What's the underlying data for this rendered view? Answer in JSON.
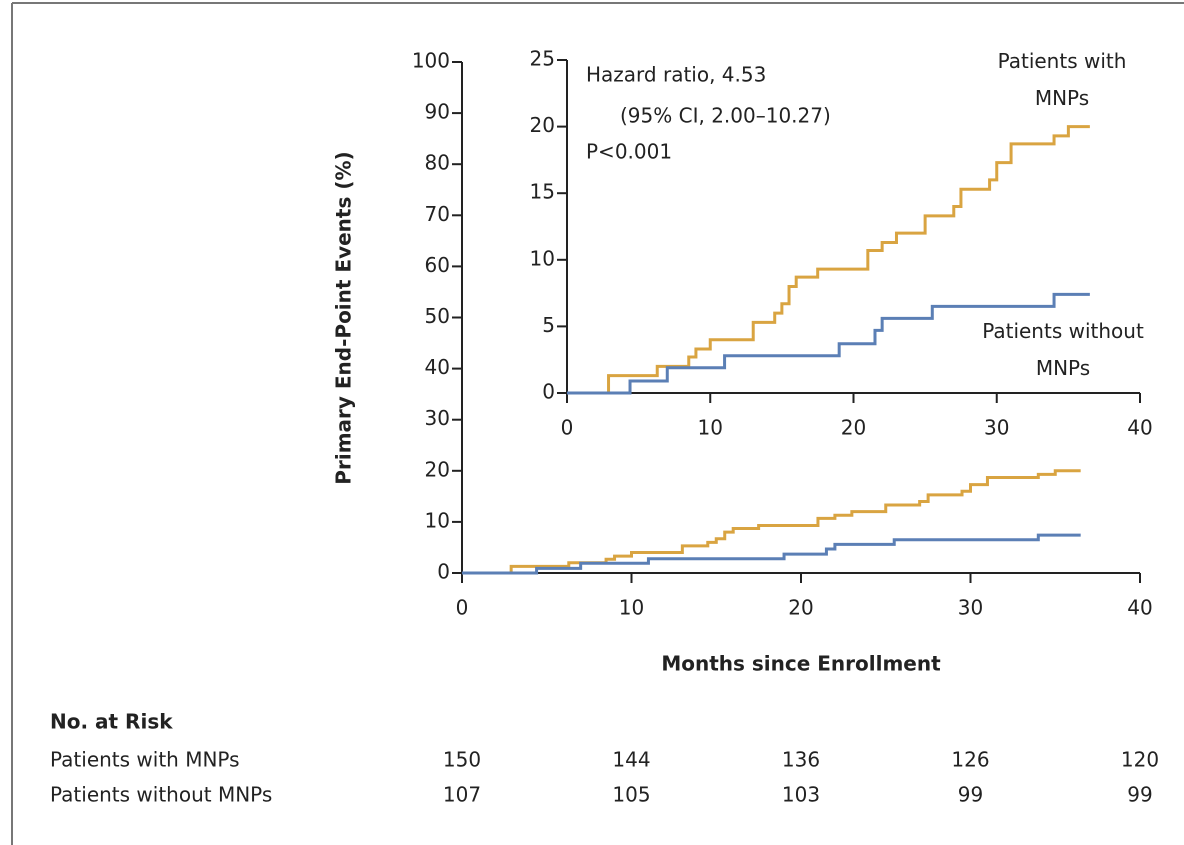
{
  "chart_data": [
    {
      "type": "step-line",
      "y_label": "Primary End-Point Events (%)",
      "x_label": "Months since Enrollment",
      "xlim": [
        0,
        40
      ],
      "xticks": [
        0,
        10,
        20,
        30,
        40
      ],
      "ylim": [
        0,
        100
      ],
      "yticks": [
        0,
        10,
        20,
        30,
        40,
        50,
        60,
        70,
        80,
        90,
        100
      ],
      "series": [
        {
          "name": "Patients with MNPs",
          "color": "#d9a441",
          "x": [
            0,
            2.9,
            6.3,
            8.5,
            9,
            10,
            13,
            14.5,
            15,
            15.5,
            16,
            17.5,
            21,
            22,
            23,
            25,
            27,
            27.5,
            29.5,
            30,
            31,
            34,
            35,
            36.5
          ],
          "values": [
            0,
            1.3,
            2.0,
            2.7,
            3.3,
            4.0,
            5.3,
            6.0,
            6.7,
            8.0,
            8.7,
            9.3,
            10.7,
            11.3,
            12.0,
            13.3,
            14.0,
            15.3,
            16.0,
            17.3,
            18.7,
            19.3,
            20.0,
            20.0
          ]
        },
        {
          "name": "Patients without MNPs",
          "color": "#5b7fb5",
          "x": [
            0,
            4.4,
            7,
            11,
            19,
            21.5,
            22,
            25.5,
            34,
            36.5
          ],
          "values": [
            0,
            0.9,
            1.9,
            2.8,
            3.7,
            4.7,
            5.6,
            6.5,
            7.4,
            7.4
          ]
        }
      ]
    },
    {
      "type": "step-line",
      "annotations": [
        "Hazard ratio, 4.53",
        "(95% CI, 2.00–10.27)",
        "P<0.001"
      ],
      "xlim": [
        0,
        40
      ],
      "xticks": [
        0,
        10,
        20,
        30,
        40
      ],
      "ylim": [
        0,
        25
      ],
      "yticks": [
        0,
        5,
        10,
        15,
        20,
        25
      ],
      "series": [
        {
          "name": "Patients with MNPs",
          "color": "#d9a441",
          "x": [
            0,
            2.9,
            6.3,
            8.5,
            9,
            10,
            13,
            14.5,
            15,
            15.5,
            16,
            17.5,
            21,
            22,
            23,
            25,
            27,
            27.5,
            29.5,
            30,
            31,
            34,
            35,
            36.5
          ],
          "values": [
            0,
            1.3,
            2.0,
            2.7,
            3.3,
            4.0,
            5.3,
            6.0,
            6.7,
            8.0,
            8.7,
            9.3,
            10.7,
            11.3,
            12.0,
            13.3,
            14.0,
            15.3,
            16.0,
            17.3,
            18.7,
            19.3,
            20.0,
            20.0
          ]
        },
        {
          "name": "Patients without MNPs",
          "color": "#5b7fb5",
          "x": [
            0,
            4.4,
            7,
            11,
            19,
            21.5,
            22,
            25.5,
            34,
            36.5
          ],
          "values": [
            0,
            0.9,
            1.9,
            2.8,
            3.7,
            4.7,
            5.6,
            6.5,
            7.4,
            7.4
          ]
        }
      ]
    }
  ],
  "risk_table": {
    "title": "No. at Risk",
    "rows": [
      {
        "label": "Patients with MNPs",
        "values": [
          150,
          144,
          136,
          126,
          120
        ]
      },
      {
        "label": "Patients without MNPs",
        "values": [
          107,
          105,
          103,
          99,
          99
        ]
      }
    ]
  }
}
